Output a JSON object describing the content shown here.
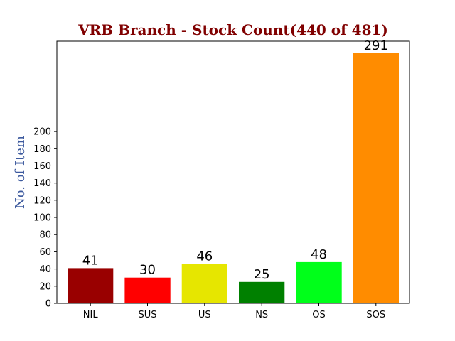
{
  "chart_data": {
    "type": "bar",
    "title": "VRB Branch - Stock Count(440 of 481)",
    "xlabel": "",
    "ylabel": "No. of Item",
    "categories": [
      "NIL",
      "SUS",
      "US",
      "NS",
      "OS",
      "SOS"
    ],
    "values": [
      41,
      30,
      46,
      25,
      48,
      291
    ],
    "data_labels": [
      "41",
      "30",
      "46",
      "25",
      "48",
      "291"
    ],
    "bar_colors": [
      "#990000",
      "#ff0000",
      "#e6e600",
      "#008000",
      "#00ff1a",
      "#ff8c00"
    ],
    "yticks": [
      0,
      20,
      40,
      60,
      80,
      100,
      120,
      140,
      160,
      180,
      200
    ],
    "ylim": [
      0,
      291
    ],
    "grid": false,
    "legend": "none",
    "title_color": "#800000",
    "ylabel_color": "#3d5a9e"
  }
}
